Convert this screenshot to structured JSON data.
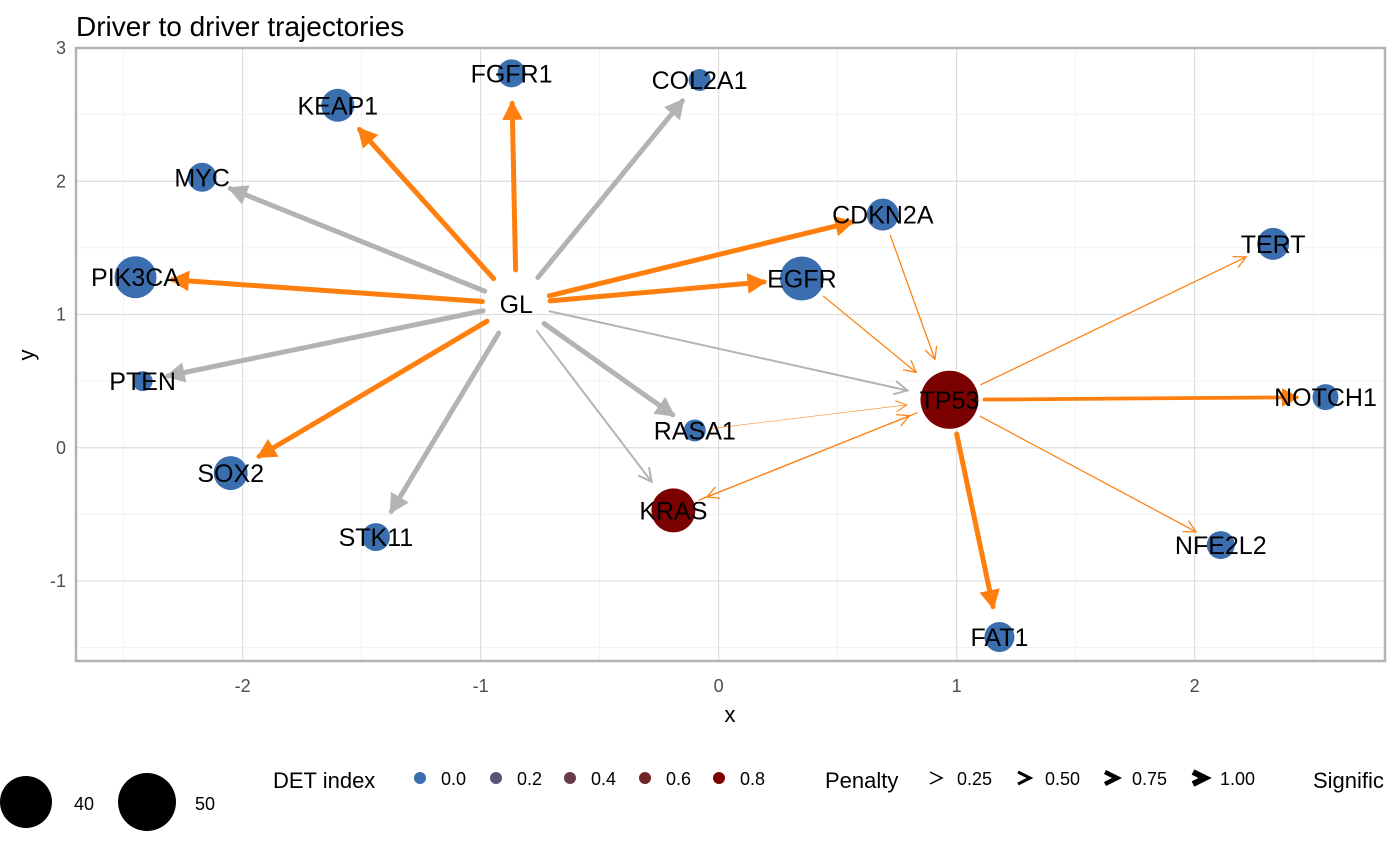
{
  "chart_data": {
    "type": "network",
    "title": "Driver to driver trajectories",
    "xlabel": "x",
    "ylabel": "y",
    "xlim": [
      -2.7,
      2.8
    ],
    "ylim": [
      -1.6,
      3.0
    ],
    "x_ticks": [
      "-2",
      "-1",
      "0",
      "1",
      "2"
    ],
    "x_tick_values": [
      -2,
      -1,
      0,
      1,
      2
    ],
    "y_ticks": [
      "-1",
      "0",
      "1",
      "2",
      "3"
    ],
    "y_tick_values": [
      -1,
      0,
      1,
      2,
      3
    ],
    "grid": true,
    "colors": {
      "low": "#3A6EAF",
      "high": "#7B0000",
      "significant": "#FF7F0E",
      "not_significant": "#B3B3B3"
    },
    "nodes": [
      {
        "name": "GL",
        "x": -0.85,
        "y": 1.08,
        "det": null,
        "size": null
      },
      {
        "name": "FGFR1",
        "x": -0.87,
        "y": 2.81,
        "det": 0.0,
        "size": 28
      },
      {
        "name": "COL2A1",
        "x": -0.08,
        "y": 2.76,
        "det": 0.0,
        "size": 22
      },
      {
        "name": "KEAP1",
        "x": -1.6,
        "y": 2.57,
        "det": 0.0,
        "size": 33
      },
      {
        "name": "MYC",
        "x": -2.17,
        "y": 2.03,
        "det": 0.0,
        "size": 29
      },
      {
        "name": "CDKN2A",
        "x": 0.69,
        "y": 1.75,
        "det": 0.0,
        "size": 32
      },
      {
        "name": "TERT",
        "x": 2.33,
        "y": 1.53,
        "det": 0.0,
        "size": 32
      },
      {
        "name": "PIK3CA",
        "x": -2.45,
        "y": 1.28,
        "det": 0.0,
        "size": 42
      },
      {
        "name": "EGFR",
        "x": 0.35,
        "y": 1.27,
        "det": 0.0,
        "size": 44
      },
      {
        "name": "PTEN",
        "x": -2.42,
        "y": 0.5,
        "det": 0.0,
        "size": 20
      },
      {
        "name": "TP53",
        "x": 0.97,
        "y": 0.36,
        "det": 0.9,
        "size": 58
      },
      {
        "name": "NOTCH1",
        "x": 2.55,
        "y": 0.38,
        "det": 0.0,
        "size": 26
      },
      {
        "name": "RASA1",
        "x": -0.1,
        "y": 0.13,
        "det": 0.0,
        "size": 22
      },
      {
        "name": "SOX2",
        "x": -2.05,
        "y": -0.19,
        "det": 0.0,
        "size": 34
      },
      {
        "name": "KRAS",
        "x": -0.19,
        "y": -0.47,
        "det": 0.9,
        "size": 44
      },
      {
        "name": "STK11",
        "x": -1.44,
        "y": -0.67,
        "det": 0.0,
        "size": 28
      },
      {
        "name": "NFE2L2",
        "x": 2.11,
        "y": -0.73,
        "det": 0.0,
        "size": 28
      },
      {
        "name": "FAT1",
        "x": 1.18,
        "y": -1.42,
        "det": 0.0,
        "size": 30
      }
    ],
    "edges": [
      {
        "from": "GL",
        "to": "FGFR1",
        "significant": true,
        "penalty": 1.0
      },
      {
        "from": "GL",
        "to": "KEAP1",
        "significant": true,
        "penalty": 1.0
      },
      {
        "from": "GL",
        "to": "PIK3CA",
        "significant": true,
        "penalty": 1.0
      },
      {
        "from": "GL",
        "to": "SOX2",
        "significant": true,
        "penalty": 1.0
      },
      {
        "from": "GL",
        "to": "CDKN2A",
        "significant": true,
        "penalty": 1.0
      },
      {
        "from": "GL",
        "to": "EGFR",
        "significant": true,
        "penalty": 1.0
      },
      {
        "from": "GL",
        "to": "COL2A1",
        "significant": false,
        "penalty": 1.0
      },
      {
        "from": "GL",
        "to": "MYC",
        "significant": false,
        "penalty": 1.0
      },
      {
        "from": "GL",
        "to": "PTEN",
        "significant": false,
        "penalty": 1.0
      },
      {
        "from": "GL",
        "to": "STK11",
        "significant": false,
        "penalty": 1.0
      },
      {
        "from": "GL",
        "to": "RASA1",
        "significant": false,
        "penalty": 1.0
      },
      {
        "from": "GL",
        "to": "KRAS",
        "significant": false,
        "penalty": 0.4
      },
      {
        "from": "GL",
        "to": "TP53",
        "significant": false,
        "penalty": 0.4
      },
      {
        "from": "CDKN2A",
        "to": "TP53",
        "significant": true,
        "penalty": 0.25
      },
      {
        "from": "EGFR",
        "to": "TP53",
        "significant": true,
        "penalty": 0.25
      },
      {
        "from": "RASA1",
        "to": "TP53",
        "significant": true,
        "penalty": 0.1
      },
      {
        "from": "KRAS",
        "to": "TP53",
        "significant": true,
        "penalty": 0.25
      },
      {
        "from": "TP53",
        "to": "KRAS",
        "significant": true,
        "penalty": 0.25
      },
      {
        "from": "TP53",
        "to": "TERT",
        "significant": true,
        "penalty": 0.25
      },
      {
        "from": "TP53",
        "to": "NOTCH1",
        "significant": true,
        "penalty": 0.75
      },
      {
        "from": "TP53",
        "to": "NFE2L2",
        "significant": true,
        "penalty": 0.25
      },
      {
        "from": "TP53",
        "to": "FAT1",
        "significant": true,
        "penalty": 1.0
      }
    ],
    "legend": {
      "placement": "bottom",
      "size": {
        "labels": [
          "40",
          "50"
        ],
        "values": [
          40,
          50
        ]
      },
      "det": {
        "title": "DET index",
        "labels": [
          "0.0",
          "0.2",
          "0.4",
          "0.6",
          "0.8"
        ],
        "values": [
          0.0,
          0.2,
          0.4,
          0.6,
          0.8
        ]
      },
      "penalty": {
        "title": "Penalty",
        "labels": [
          "0.25",
          "0.50",
          "0.75",
          "1.00"
        ],
        "values": [
          0.25,
          0.5,
          0.75,
          1.0
        ]
      },
      "significance": {
        "title": "Signific"
      }
    }
  }
}
